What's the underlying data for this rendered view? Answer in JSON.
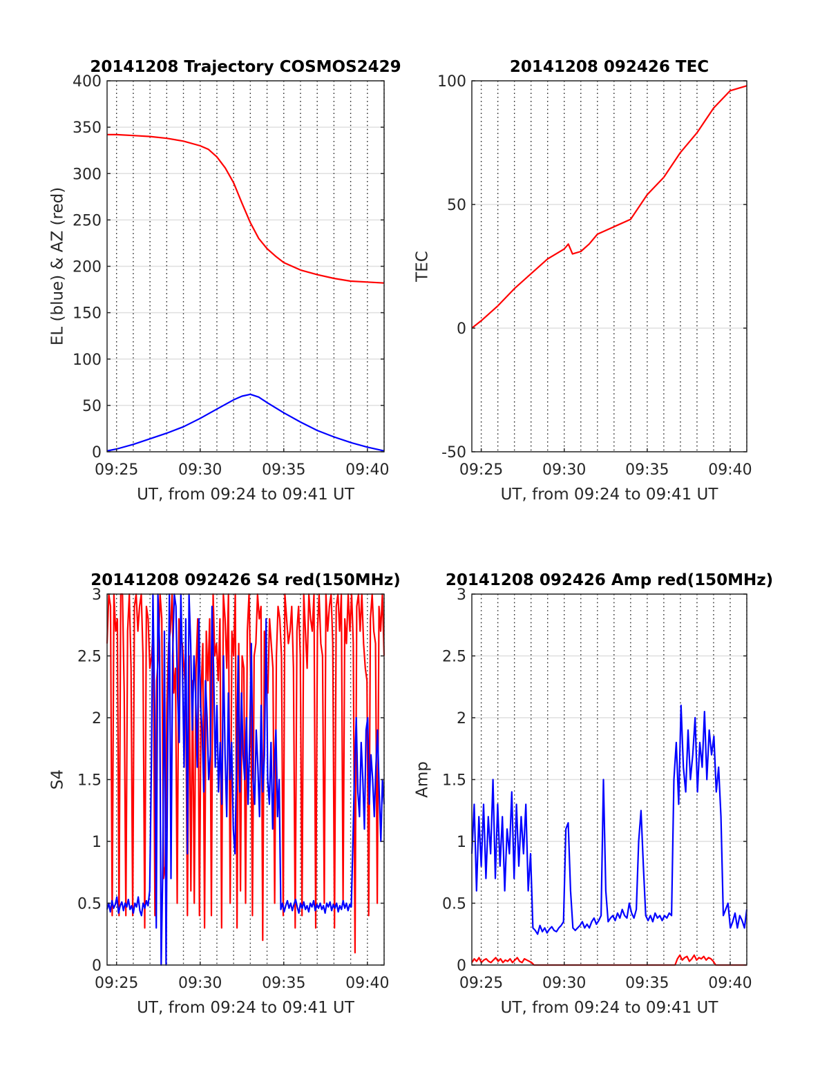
{
  "chart_data": [
    {
      "type": "line",
      "title": "20141208 Trajectory COSMOS2429",
      "xlabel": "UT, from 09:24 to 09:41 UT",
      "ylabel": "EL (blue) & AZ (red)",
      "x_range": [
        "09:24:26",
        "09:41:00"
      ],
      "x_ticks": [
        "09:25",
        "09:30",
        "09:35",
        "09:40"
      ],
      "ylim": [
        0,
        400
      ],
      "y_ticks": [
        "0",
        "50",
        "100",
        "150",
        "200",
        "250",
        "300",
        "350",
        "400"
      ],
      "grid": true,
      "series": [
        {
          "color": "#ff0000",
          "x": [
            "09:24:26",
            "09:25:00",
            "09:26:00",
            "09:27:00",
            "09:28:00",
            "09:29:00",
            "09:30:00",
            "09:30:30",
            "09:31:00",
            "09:31:30",
            "09:32:00",
            "09:32:30",
            "09:33:00",
            "09:33:30",
            "09:34:00",
            "09:34:30",
            "09:35:00",
            "09:36:00",
            "09:37:00",
            "09:38:00",
            "09:39:00",
            "09:40:00",
            "09:41:00"
          ],
          "values": [
            342,
            342,
            341,
            340,
            338,
            335,
            330,
            326,
            318,
            306,
            290,
            268,
            247,
            230,
            219,
            211,
            204,
            196,
            191,
            187,
            184,
            183,
            182
          ]
        },
        {
          "color": "#0000ff",
          "x": [
            "09:24:26",
            "09:25:00",
            "09:26:00",
            "09:27:00",
            "09:28:00",
            "09:29:00",
            "09:30:00",
            "09:31:00",
            "09:32:00",
            "09:32:30",
            "09:33:00",
            "09:33:30",
            "09:34:00",
            "09:35:00",
            "09:36:00",
            "09:37:00",
            "09:38:00",
            "09:39:00",
            "09:40:00",
            "09:41:00"
          ],
          "values": [
            1,
            3,
            8,
            14,
            20,
            27,
            36,
            46,
            56,
            60,
            62,
            59,
            53,
            42,
            32,
            23,
            16,
            10,
            5,
            1
          ]
        }
      ]
    },
    {
      "type": "line",
      "title": "20141208 092426 TEC",
      "xlabel": "UT, from 09:24 to 09:41 UT",
      "ylabel": "TEC",
      "x_range": [
        "09:24:26",
        "09:41:00"
      ],
      "x_ticks": [
        "09:25",
        "09:30",
        "09:35",
        "09:40"
      ],
      "ylim": [
        -50,
        100
      ],
      "y_ticks": [
        "-50",
        "0",
        "50",
        "100"
      ],
      "grid": true,
      "series": [
        {
          "color": "#ff0000",
          "x": [
            "09:24:26",
            "09:25:00",
            "09:26:00",
            "09:27:00",
            "09:28:00",
            "09:29:00",
            "09:30:00",
            "09:30:15",
            "09:30:30",
            "09:31:00",
            "09:31:30",
            "09:32:00",
            "09:33:00",
            "09:34:00",
            "09:35:00",
            "09:36:00",
            "09:37:00",
            "09:38:00",
            "09:39:00",
            "09:40:00",
            "09:41:00"
          ],
          "values": [
            0,
            3,
            9,
            16,
            22,
            28,
            32,
            34,
            30,
            31,
            34,
            38,
            41,
            44,
            54,
            61,
            71,
            79,
            89,
            96,
            98
          ]
        }
      ]
    },
    {
      "type": "line",
      "title": "20141208 092426 S4 red(150MHz)",
      "xlabel": "UT, from 09:24 to 09:41 UT",
      "ylabel": "S4",
      "x_range": [
        "09:24:26",
        "09:41:00"
      ],
      "x_ticks": [
        "09:25",
        "09:30",
        "09:35",
        "09:40"
      ],
      "ylim": [
        0,
        3
      ],
      "y_ticks": [
        "0",
        "0.5",
        "1",
        "1.5",
        "2",
        "2.5",
        "3"
      ],
      "grid": true,
      "series": [
        {
          "color": "#ff0000",
          "x_start": "09:24:26",
          "x_end": "09:41:00",
          "values": [
            2.6,
            3,
            2.9,
            0.4,
            3,
            2.7,
            2.8,
            0.4,
            3,
            3,
            2.2,
            0.4,
            2.7,
            3,
            2.4,
            0.4,
            2.9,
            3,
            2.7,
            2.9,
            3,
            2.5,
            0.3,
            2.9,
            2.8,
            2.4,
            2.5,
            2.7,
            0.4,
            2.3,
            2.5,
            3,
            2.8,
            0.7,
            0.8,
            2.1,
            2.6,
            2.7,
            3,
            2.2,
            2.4,
            0.5,
            2.8,
            2.6,
            2.6,
            2.4,
            2.2,
            0.4,
            2.5,
            0.6,
            2.3,
            0.5,
            2.4,
            2.8,
            0.4,
            2.2,
            2.6,
            0.3,
            2.7,
            2.3,
            2.8,
            0.4,
            3,
            2.5,
            2.6,
            2.3,
            2.8,
            0.3,
            3,
            2.8,
            2.4,
            3,
            0.5,
            2.7,
            2.5,
            3,
            0.3,
            2.6,
            0.6,
            2.5,
            2.4,
            0.5,
            2.7,
            3,
            2.3,
            0.4,
            2.5,
            2.6,
            3,
            2.8,
            2.9,
            0.2,
            2.7,
            2.4,
            2.2,
            2.8,
            2.6,
            2.4,
            0.5,
            2.5,
            2.9,
            2.8,
            2.5,
            0.4,
            3,
            2.8,
            2.6,
            2.7,
            2.9,
            2.4,
            0.3,
            2.7,
            2.9,
            2.5,
            0.4,
            3,
            2.7,
            2.4,
            3,
            2.8,
            2.7,
            3,
            0.3,
            2.7,
            3,
            2.6,
            2.5,
            0.5,
            3,
            2.7,
            2.9,
            3,
            2.6,
            0.3,
            2.9,
            3,
            2.7,
            3,
            0.5,
            2.8,
            2.6,
            3,
            2.7,
            3,
            2.6,
            0.1,
            2.9,
            3,
            2.7,
            3,
            2.6,
            2.4,
            2.3,
            0.4,
            2.8,
            3,
            2.7,
            2.6,
            0.5,
            2.9,
            2.7,
            3,
            2.5
          ]
        },
        {
          "color": "#0000ff",
          "x_start": "09:24:26",
          "x_end": "09:41:00",
          "values": [
            0.45,
            0.5,
            0.43,
            0.52,
            0.46,
            0.49,
            0.55,
            0.42,
            0.48,
            0.51,
            0.44,
            0.5,
            0.47,
            0.53,
            0.45,
            0.48,
            0.42,
            0.5,
            0.47,
            0.55,
            0.44,
            0.4,
            0.5,
            0.46,
            0.52,
            0.48,
            0.6,
            1.6,
            3,
            2.1,
            0.3,
            3,
            2.6,
            0,
            0.8,
            2.7,
            0,
            1.8,
            3,
            0.7,
            2.5,
            3,
            2.9,
            2.2,
            1.8,
            3,
            2.4,
            1.6,
            2.8,
            0.9,
            3,
            2.6,
            1.9,
            2.5,
            2.2,
            1.6,
            2.8,
            2.1,
            1.9,
            1.4,
            2.3,
            2.0,
            1.5,
            1.7,
            2.9,
            2.4,
            1.6,
            2.1,
            1.4,
            1.8,
            1.3,
            2.5,
            1.7,
            1.2,
            2.2,
            1.5,
            1.8,
            1.1,
            0.9,
            1.6,
            2.5,
            1.4,
            2.2,
            1.7,
            1.5,
            2.0,
            1.3,
            1.8,
            2.6,
            1.5,
            1.3,
            1.9,
            1.6,
            1.2,
            2.1,
            1.4,
            1.7,
            2.8,
            1.5,
            1.3,
            1.8,
            1.1,
            1.6,
            1.9,
            1.2,
            1.5,
            0.45,
            0.5,
            0.43,
            0.48,
            0.52,
            0.46,
            0.5,
            0.44,
            0.49,
            0.53,
            0.47,
            0.42,
            0.5,
            0.46,
            0.51,
            0.45,
            0.48,
            0.43,
            0.5,
            0.47,
            0.52,
            0.44,
            0.49,
            0.46,
            0.5,
            0.45,
            0.48,
            0.42,
            0.5,
            0.47,
            0.51,
            0.44,
            0.49,
            0.46,
            0.5,
            0.43,
            0.48,
            0.45,
            0.52,
            0.46,
            0.5,
            0.44,
            0.49,
            0.47,
            1.0,
            1.6,
            2.0,
            1.4,
            1.2,
            1.8,
            1.5,
            1.1,
            1.9,
            2.0,
            1.3,
            1.7,
            1.5,
            1.2,
            1.6,
            1.9,
            1.4,
            1.0,
            1.5,
            1.3
          ]
        }
      ]
    },
    {
      "type": "line",
      "title": "20141208 092426 Amp red(150MHz)",
      "xlabel": "UT, from 09:24 to 09:41 UT",
      "ylabel": "Amp",
      "x_range": [
        "09:24:26",
        "09:41:00"
      ],
      "x_ticks": [
        "09:25",
        "09:30",
        "09:35",
        "09:40"
      ],
      "ylim": [
        0,
        3
      ],
      "y_ticks": [
        "0",
        "0.5",
        "1",
        "1.5",
        "2",
        "2.5",
        "3"
      ],
      "grid": true,
      "series": [
        {
          "color": "#0000ff",
          "x_start": "09:24:26",
          "x_end": "09:41:00",
          "values": [
            0.9,
            1.3,
            0.6,
            1.2,
            0.8,
            1.3,
            0.7,
            1.2,
            0.9,
            1.5,
            0.7,
            1.3,
            0.8,
            1.2,
            0.6,
            1.1,
            0.9,
            1.4,
            0.7,
            1.3,
            0.8,
            1.2,
            0.9,
            1.3,
            0.6,
            0.9,
            0.3,
            0.28,
            0.25,
            0.32,
            0.27,
            0.3,
            0.26,
            0.29,
            0.31,
            0.28,
            0.27,
            0.3,
            0.32,
            0.35,
            1.1,
            1.15,
            0.6,
            0.3,
            0.28,
            0.3,
            0.32,
            0.35,
            0.3,
            0.33,
            0.3,
            0.35,
            0.38,
            0.33,
            0.36,
            0.4,
            1.5,
            0.6,
            0.35,
            0.38,
            0.4,
            0.36,
            0.42,
            0.38,
            0.45,
            0.4,
            0.38,
            0.5,
            0.42,
            0.38,
            0.45,
            1.0,
            1.25,
            0.8,
            0.4,
            0.36,
            0.4,
            0.35,
            0.42,
            0.38,
            0.4,
            0.36,
            0.4,
            0.38,
            0.42,
            0.4,
            1.5,
            1.8,
            1.3,
            2.1,
            1.6,
            1.4,
            1.9,
            1.5,
            1.7,
            2.0,
            1.4,
            1.8,
            1.6,
            2.05,
            1.5,
            1.9,
            1.7,
            1.85,
            1.4,
            1.6,
            1.2,
            0.4,
            0.45,
            0.5,
            0.3,
            0.35,
            0.42,
            0.3,
            0.4,
            0.36,
            0.3,
            0.45
          ]
        },
        {
          "color": "#ff0000",
          "x_start": "09:24:26",
          "x_end": "09:41:00",
          "values": [
            0.02,
            0.05,
            0.03,
            0.06,
            0.02,
            0.04,
            0.05,
            0.03,
            0.02,
            0.04,
            0.06,
            0.03,
            0.05,
            0.02,
            0.04,
            0.03,
            0.05,
            0.02,
            0.04,
            0.06,
            0.03,
            0.02,
            0.05,
            0.04,
            0.03,
            0.02,
            0,
            0,
            0,
            0,
            0,
            0,
            0,
            0,
            0,
            0,
            0,
            0,
            0,
            0,
            0,
            0,
            0,
            0,
            0,
            0,
            0,
            0,
            0,
            0,
            0,
            0,
            0,
            0,
            0,
            0,
            0,
            0,
            0,
            0,
            0,
            0,
            0,
            0,
            0,
            0,
            0,
            0,
            0,
            0,
            0,
            0,
            0,
            0,
            0,
            0,
            0,
            0,
            0,
            0,
            0,
            0,
            0,
            0,
            0,
            0,
            0.05,
            0.08,
            0.04,
            0.06,
            0.07,
            0.03,
            0.05,
            0.08,
            0.04,
            0.06,
            0.05,
            0.07,
            0.04,
            0.06,
            0.05,
            0.03,
            0,
            0,
            0,
            0,
            0,
            0,
            0,
            0,
            0,
            0,
            0,
            0,
            0,
            0
          ]
        }
      ]
    }
  ]
}
